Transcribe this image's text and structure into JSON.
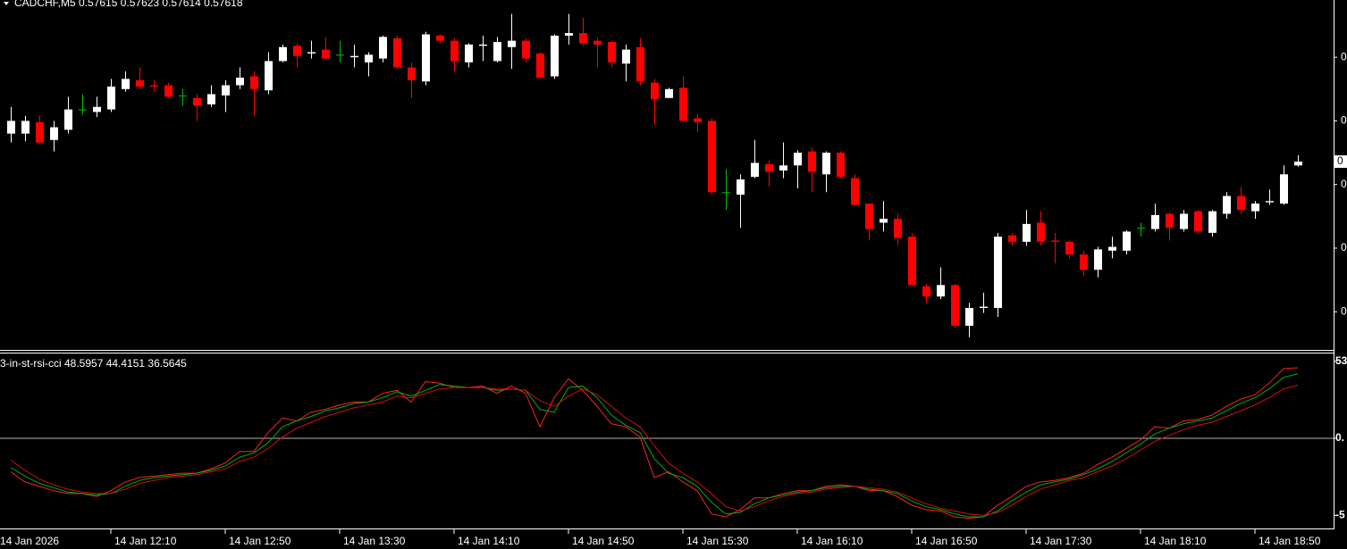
{
  "chart_data": [
    {
      "type": "candlestick",
      "title": "CADCHF,M5  0.57615 0.57623 0.57614 0.57618",
      "up_color": "#ffffff",
      "down_color": "#ff0000",
      "doji_color": "#00c000",
      "ylim": [
        0.5747,
        0.57745
      ],
      "yticks": [
        {
          "value": 0.577,
          "label": "0"
        },
        {
          "value": 0.5765,
          "label": "0"
        },
        {
          "value": 0.576,
          "label": "0"
        },
        {
          "value": 0.5755,
          "label": "0"
        },
        {
          "value": 0.575,
          "label": "0"
        }
      ],
      "last_price": {
        "value": 0.57618,
        "label": "0"
      },
      "x_labels": [
        "14 Jan 2026",
        "14 Jan 12:10",
        "14 Jan 12:50",
        "14 Jan 13:30",
        "14 Jan 14:10",
        "14 Jan 14:50",
        "14 Jan 15:30",
        "14 Jan 16:10",
        "14 Jan 16:50",
        "14 Jan 17:30",
        "14 Jan 18:10",
        "14 Jan 18:50"
      ],
      "open": [
        0.5764,
        0.5764,
        0.57649,
        0.57635,
        0.57643,
        0.57659,
        0.57657,
        0.57659,
        0.57675,
        0.57682,
        0.57678,
        0.57678,
        0.5767,
        0.57668,
        0.57663,
        0.5767,
        0.57678,
        0.57685,
        0.57674,
        0.57697,
        0.57709,
        0.57703,
        0.57706,
        0.57702,
        0.577,
        0.57696,
        0.57699,
        0.57715,
        0.57692,
        0.57681,
        0.57717,
        0.57713,
        0.57696,
        0.57709,
        0.57697,
        0.57708,
        0.57713,
        0.57703,
        0.57685,
        0.57717,
        0.57719,
        0.57713,
        0.57712,
        0.57695,
        0.57708,
        0.5768,
        0.57668,
        0.57676,
        0.57652,
        0.5765,
        0.57594,
        0.57592,
        0.57606,
        0.57616,
        0.57611,
        0.57615,
        0.57626,
        0.57608,
        0.57625,
        0.57605,
        0.57585,
        0.5757,
        0.57573,
        0.57559,
        0.5752,
        0.57512,
        0.57521,
        0.57489,
        0.57503,
        0.57503,
        0.5756,
        0.57555,
        0.5757,
        0.57556,
        0.57555,
        0.57545,
        0.57533,
        0.57548,
        0.57548,
        0.57566,
        0.57565,
        0.57577,
        0.57565,
        0.57579,
        0.57562,
        0.57577,
        0.57591,
        0.57579,
        0.57586,
        0.57585,
        0.57615
      ],
      "high": [
        0.57661,
        0.57654,
        0.57654,
        0.5765,
        0.57669,
        0.57671,
        0.57669,
        0.57683,
        0.57689,
        0.57692,
        0.57682,
        0.5768,
        0.57675,
        0.57671,
        0.57678,
        0.57682,
        0.57692,
        0.57689,
        0.57704,
        0.5771,
        0.57711,
        0.57713,
        0.57716,
        0.57713,
        0.5771,
        0.57704,
        0.57717,
        0.57717,
        0.57696,
        0.5772,
        0.57718,
        0.57715,
        0.57711,
        0.57717,
        0.57716,
        0.57734,
        0.57715,
        0.57704,
        0.57718,
        0.57734,
        0.57731,
        0.57715,
        0.57713,
        0.5771,
        0.57715,
        0.57683,
        0.57676,
        0.57685,
        0.57655,
        0.57652,
        0.57612,
        0.57608,
        0.57635,
        0.57619,
        0.57633,
        0.57627,
        0.57629,
        0.57626,
        0.57626,
        0.57608,
        0.57585,
        0.57587,
        0.57577,
        0.57562,
        0.57522,
        0.57535,
        0.57522,
        0.57507,
        0.57515,
        0.57562,
        0.57562,
        0.5758,
        0.57579,
        0.57562,
        0.57556,
        0.57548,
        0.57551,
        0.57559,
        0.57564,
        0.5757,
        0.57585,
        0.57578,
        0.5758,
        0.5758,
        0.5758,
        0.57594,
        0.57598,
        0.57587,
        0.57596,
        0.57615,
        0.57623
      ],
      "low": [
        0.57633,
        0.57634,
        0.57632,
        0.57626,
        0.5764,
        0.57655,
        0.57653,
        0.57657,
        0.57673,
        0.57675,
        0.57673,
        0.57668,
        0.57662,
        0.5765,
        0.57661,
        0.57657,
        0.57675,
        0.57654,
        0.57671,
        0.57696,
        0.57692,
        0.57699,
        0.57698,
        0.57696,
        0.57692,
        0.57685,
        0.57696,
        0.57691,
        0.57668,
        0.57678,
        0.57711,
        0.57689,
        0.57692,
        0.57697,
        0.57696,
        0.57691,
        0.57696,
        0.57683,
        0.57683,
        0.5771,
        0.57709,
        0.57692,
        0.57692,
        0.57681,
        0.57678,
        0.57647,
        0.57668,
        0.57649,
        0.57641,
        0.57592,
        0.5758,
        0.57566,
        0.57605,
        0.57598,
        0.57605,
        0.57597,
        0.57594,
        0.57594,
        0.57605,
        0.57583,
        0.57556,
        0.57563,
        0.57552,
        0.5752,
        0.57507,
        0.5751,
        0.57487,
        0.5748,
        0.57499,
        0.57496,
        0.57552,
        0.57552,
        0.57552,
        0.57538,
        0.57542,
        0.57528,
        0.57527,
        0.57542,
        0.57545,
        0.57559,
        0.57563,
        0.57556,
        0.57563,
        0.57562,
        0.57559,
        0.57573,
        0.57577,
        0.57573,
        0.57584,
        0.57584,
        0.57614
      ],
      "close": [
        0.5765,
        0.5765,
        0.57633,
        0.57645,
        0.57659,
        0.57659,
        0.57661,
        0.57677,
        0.57683,
        0.57677,
        0.57677,
        0.57669,
        0.5767,
        0.57662,
        0.57671,
        0.57678,
        0.57684,
        0.57675,
        0.57697,
        0.57708,
        0.57701,
        0.57704,
        0.57699,
        0.57702,
        0.57701,
        0.57702,
        0.57716,
        0.57692,
        0.57682,
        0.57718,
        0.57713,
        0.57697,
        0.5771,
        0.5771,
        0.57712,
        0.57713,
        0.57699,
        0.57684,
        0.57717,
        0.57719,
        0.57711,
        0.5771,
        0.57696,
        0.57706,
        0.57681,
        0.57667,
        0.57675,
        0.5765,
        0.57649,
        0.57594,
        0.57594,
        0.57604,
        0.57617,
        0.5761,
        0.57615,
        0.57625,
        0.5761,
        0.57625,
        0.57606,
        0.57584,
        0.57565,
        0.57573,
        0.57558,
        0.57521,
        0.57512,
        0.57521,
        0.57489,
        0.57503,
        0.57504,
        0.57559,
        0.57555,
        0.57569,
        0.57555,
        0.57555,
        0.57545,
        0.57533,
        0.57549,
        0.57551,
        0.57563,
        0.57566,
        0.57576,
        0.57566,
        0.57577,
        0.57563,
        0.57579,
        0.57591,
        0.5758,
        0.57585,
        0.57587,
        0.57608,
        0.57618
      ]
    },
    {
      "type": "line",
      "title": "3-in-st-rsi-cci 48.5957 44.4151 36.5645",
      "ylim": [
        -62,
        59
      ],
      "yticks": [
        53,
        {
          "value": 0,
          "label": "0."
        },
        {
          "value": -53,
          "label": "-5"
        }
      ],
      "level_color": "#b0b0b0",
      "series": [
        {
          "color": "#ff2020",
          "values": [
            -23,
            -30,
            -33,
            -36,
            -38,
            -38,
            -40,
            -36,
            -30,
            -27,
            -26,
            -25,
            -24,
            -24,
            -21,
            -17,
            -9,
            -9,
            4,
            14,
            12,
            18,
            20,
            23,
            25,
            25,
            31,
            33,
            25,
            39,
            38,
            35,
            35,
            36,
            31,
            36,
            31,
            8,
            28,
            41,
            33,
            22,
            10,
            8,
            1,
            -27,
            -23,
            -30,
            -36,
            -52,
            -54,
            -49,
            -41,
            -41,
            -38,
            -36,
            -36,
            -33,
            -32,
            -33,
            -36,
            -36,
            -40,
            -46,
            -49,
            -50,
            -54,
            -55,
            -54,
            -46,
            -40,
            -33,
            -30,
            -29,
            -27,
            -24,
            -18,
            -13,
            -7,
            -1,
            8,
            7,
            12,
            13,
            16,
            22,
            27,
            30,
            38,
            48,
            48.5957
          ]
        },
        {
          "color": "#00b000",
          "values": [
            -20,
            -26,
            -31,
            -34,
            -37,
            -38,
            -39,
            -38,
            -33,
            -29,
            -27,
            -26,
            -25,
            -24,
            -22,
            -19,
            -13,
            -10,
            -3,
            8,
            12,
            15,
            19,
            21,
            24,
            25,
            28,
            32,
            29,
            33,
            37,
            36,
            35,
            35,
            33,
            34,
            33,
            20,
            18,
            35,
            36,
            28,
            16,
            9,
            4,
            -14,
            -24,
            -27,
            -33,
            -44,
            -52,
            -51,
            -45,
            -41,
            -39,
            -37,
            -36,
            -34,
            -33,
            -33,
            -35,
            -36,
            -38,
            -43,
            -47,
            -49,
            -52,
            -54,
            -54,
            -50,
            -43,
            -37,
            -32,
            -30,
            -28,
            -25,
            -21,
            -16,
            -10,
            -4,
            3,
            7,
            10,
            12,
            14,
            19,
            24,
            28,
            34,
            42,
            44.4151
          ]
        },
        {
          "color": "#d01010",
          "values": [
            -15,
            -22,
            -28,
            -32,
            -35,
            -37,
            -38,
            -38,
            -35,
            -31,
            -29,
            -27,
            -26,
            -25,
            -23,
            -21,
            -16,
            -13,
            -7,
            1,
            7,
            11,
            15,
            18,
            21,
            23,
            25,
            29,
            28,
            31,
            34,
            35,
            35,
            35,
            34,
            34,
            33,
            26,
            22,
            29,
            34,
            30,
            22,
            14,
            8,
            -5,
            -17,
            -24,
            -30,
            -38,
            -47,
            -50,
            -47,
            -43,
            -40,
            -38,
            -37,
            -35,
            -34,
            -33,
            -34,
            -35,
            -37,
            -41,
            -45,
            -48,
            -50,
            -52,
            -53,
            -51,
            -46,
            -40,
            -35,
            -32,
            -29,
            -27,
            -23,
            -19,
            -14,
            -8,
            -2,
            2,
            6,
            9,
            11,
            15,
            19,
            23,
            28,
            34,
            36.5645
          ]
        }
      ]
    }
  ]
}
